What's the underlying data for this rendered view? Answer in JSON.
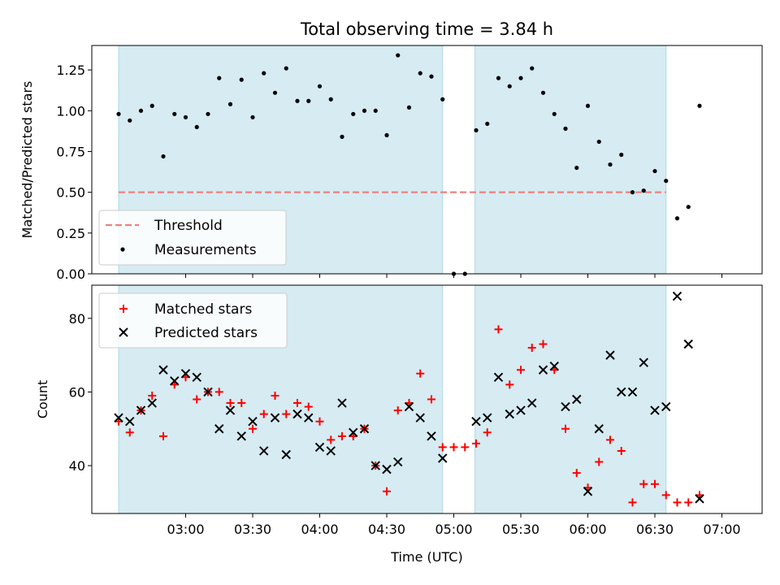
{
  "chart_data": [
    {
      "type": "scatter",
      "title": "Total observing time = 3.84 h",
      "ylabel": "Matched/Predicted stars",
      "xlabel": "",
      "x_unit": "hours UTC",
      "xlim": [
        2.3,
        7.3
      ],
      "ylim": [
        0.0,
        1.4
      ],
      "yticks": [
        0.0,
        0.25,
        0.5,
        0.75,
        1.0,
        1.25
      ],
      "ytick_labels": [
        "0.00",
        "0.25",
        "0.50",
        "0.75",
        "1.00",
        "1.25"
      ],
      "shaded_spans": [
        [
          2.5,
          4.9167
        ],
        [
          5.1583,
          6.5833
        ]
      ],
      "threshold": {
        "name": "Threshold",
        "y": 0.5,
        "x_range": [
          2.5,
          6.5833
        ],
        "color": "#f08080"
      },
      "legend": {
        "location": "lower-left",
        "entries": [
          "Threshold",
          "Measurements"
        ]
      },
      "series": [
        {
          "name": "Measurements",
          "color": "#000000",
          "points": [
            [
              2.5,
              0.98
            ],
            [
              2.5833,
              0.94
            ],
            [
              2.6667,
              1.0
            ],
            [
              2.75,
              1.03
            ],
            [
              2.8333,
              0.72
            ],
            [
              2.9167,
              0.98
            ],
            [
              3.0,
              0.96
            ],
            [
              3.0833,
              0.9
            ],
            [
              3.1667,
              0.98
            ],
            [
              3.25,
              1.2
            ],
            [
              3.3333,
              1.04
            ],
            [
              3.4167,
              1.19
            ],
            [
              3.5,
              0.96
            ],
            [
              3.5833,
              1.23
            ],
            [
              3.6667,
              1.11
            ],
            [
              3.75,
              1.26
            ],
            [
              3.8333,
              1.06
            ],
            [
              3.9167,
              1.06
            ],
            [
              4.0,
              1.15
            ],
            [
              4.0833,
              1.07
            ],
            [
              4.1667,
              0.84
            ],
            [
              4.25,
              0.98
            ],
            [
              4.3333,
              1.0
            ],
            [
              4.4167,
              1.0
            ],
            [
              4.5,
              0.85
            ],
            [
              4.5833,
              1.34
            ],
            [
              4.6667,
              1.02
            ],
            [
              4.75,
              1.23
            ],
            [
              4.8333,
              1.21
            ],
            [
              4.9167,
              1.07
            ],
            [
              5.0,
              0.0
            ],
            [
              5.0833,
              0.0
            ],
            [
              5.1667,
              0.88
            ],
            [
              5.25,
              0.92
            ],
            [
              5.3333,
              1.2
            ],
            [
              5.4167,
              1.15
            ],
            [
              5.5,
              1.2
            ],
            [
              5.5833,
              1.26
            ],
            [
              5.6667,
              1.11
            ],
            [
              5.75,
              0.98
            ],
            [
              5.8333,
              0.89
            ],
            [
              5.9167,
              0.65
            ],
            [
              6.0,
              1.03
            ],
            [
              6.0833,
              0.81
            ],
            [
              6.1667,
              0.67
            ],
            [
              6.25,
              0.73
            ],
            [
              6.3333,
              0.5
            ],
            [
              6.4167,
              0.51
            ],
            [
              6.5,
              0.63
            ],
            [
              6.5833,
              0.57
            ],
            [
              6.6667,
              0.34
            ],
            [
              6.75,
              0.41
            ],
            [
              6.8333,
              1.03
            ]
          ]
        }
      ]
    },
    {
      "type": "scatter",
      "title": "",
      "ylabel": "Count",
      "xlabel": "Time (UTC)",
      "x_unit": "hours UTC",
      "xlim": [
        2.3,
        7.3
      ],
      "ylim": [
        27,
        89
      ],
      "yticks": [
        40,
        60,
        80
      ],
      "ytick_labels": [
        "40",
        "60",
        "80"
      ],
      "xticks": [
        3.0,
        3.5,
        4.0,
        4.5,
        5.0,
        5.5,
        6.0,
        6.5,
        7.0
      ],
      "xtick_labels": [
        "03:00",
        "03:30",
        "04:00",
        "04:30",
        "05:00",
        "05:30",
        "06:00",
        "06:30",
        "07:00"
      ],
      "shaded_spans": [
        [
          2.5,
          4.9167
        ],
        [
          5.1583,
          6.5833
        ]
      ],
      "legend": {
        "location": "upper-left",
        "entries": [
          "Matched stars",
          "Predicted stars"
        ]
      },
      "series": [
        {
          "name": "Matched stars",
          "marker": "plus",
          "color": "#ff0000",
          "points": [
            [
              2.5,
              52
            ],
            [
              2.5833,
              49
            ],
            [
              2.6667,
              55
            ],
            [
              2.75,
              59
            ],
            [
              2.8333,
              48
            ],
            [
              2.9167,
              62
            ],
            [
              3.0,
              64
            ],
            [
              3.0833,
              58
            ],
            [
              3.1667,
              60
            ],
            [
              3.25,
              60
            ],
            [
              3.3333,
              57
            ],
            [
              3.4167,
              57
            ],
            [
              3.5,
              50
            ],
            [
              3.5833,
              54
            ],
            [
              3.6667,
              59
            ],
            [
              3.75,
              54
            ],
            [
              3.8333,
              57
            ],
            [
              3.9167,
              56
            ],
            [
              4.0,
              52
            ],
            [
              4.0833,
              47
            ],
            [
              4.1667,
              48
            ],
            [
              4.25,
              48
            ],
            [
              4.3333,
              50
            ],
            [
              4.4167,
              40
            ],
            [
              4.5,
              33
            ],
            [
              4.5833,
              55
            ],
            [
              4.6667,
              57
            ],
            [
              4.75,
              65
            ],
            [
              4.8333,
              58
            ],
            [
              4.9167,
              45
            ],
            [
              5.0,
              45
            ],
            [
              5.0833,
              45
            ],
            [
              5.1667,
              46
            ],
            [
              5.25,
              49
            ],
            [
              5.3333,
              77
            ],
            [
              5.4167,
              62
            ],
            [
              5.5,
              66
            ],
            [
              5.5833,
              72
            ],
            [
              5.6667,
              73
            ],
            [
              5.75,
              66
            ],
            [
              5.8333,
              50
            ],
            [
              5.9167,
              38
            ],
            [
              6.0,
              34
            ],
            [
              6.0833,
              41
            ],
            [
              6.1667,
              47
            ],
            [
              6.25,
              44
            ],
            [
              6.3333,
              30
            ],
            [
              6.4167,
              35
            ],
            [
              6.5,
              35
            ],
            [
              6.5833,
              32
            ],
            [
              6.6667,
              30
            ],
            [
              6.75,
              30
            ],
            [
              6.8333,
              32
            ]
          ]
        },
        {
          "name": "Predicted stars",
          "marker": "x",
          "color": "#000000",
          "points": [
            [
              2.5,
              53
            ],
            [
              2.5833,
              52
            ],
            [
              2.6667,
              55
            ],
            [
              2.75,
              57
            ],
            [
              2.8333,
              66
            ],
            [
              2.9167,
              63
            ],
            [
              3.0,
              65
            ],
            [
              3.0833,
              64
            ],
            [
              3.1667,
              60
            ],
            [
              3.25,
              50
            ],
            [
              3.3333,
              55
            ],
            [
              3.4167,
              48
            ],
            [
              3.5,
              52
            ],
            [
              3.5833,
              44
            ],
            [
              3.6667,
              53
            ],
            [
              3.75,
              43
            ],
            [
              3.8333,
              54
            ],
            [
              3.9167,
              53
            ],
            [
              4.0,
              45
            ],
            [
              4.0833,
              44
            ],
            [
              4.1667,
              57
            ],
            [
              4.25,
              49
            ],
            [
              4.3333,
              50
            ],
            [
              4.4167,
              40
            ],
            [
              4.5,
              39
            ],
            [
              4.5833,
              41
            ],
            [
              4.6667,
              56
            ],
            [
              4.75,
              53
            ],
            [
              4.8333,
              48
            ],
            [
              4.9167,
              42
            ],
            [
              5.1667,
              52
            ],
            [
              5.25,
              53
            ],
            [
              5.3333,
              64
            ],
            [
              5.4167,
              54
            ],
            [
              5.5,
              55
            ],
            [
              5.5833,
              57
            ],
            [
              5.6667,
              66
            ],
            [
              5.75,
              67
            ],
            [
              5.8333,
              56
            ],
            [
              5.9167,
              58
            ],
            [
              6.0,
              33
            ],
            [
              6.0833,
              50
            ],
            [
              6.1667,
              70
            ],
            [
              6.25,
              60
            ],
            [
              6.3333,
              60
            ],
            [
              6.4167,
              68
            ],
            [
              6.5,
              55
            ],
            [
              6.5833,
              56
            ],
            [
              6.6667,
              86
            ],
            [
              6.75,
              73
            ],
            [
              6.8333,
              31
            ]
          ]
        }
      ]
    }
  ]
}
